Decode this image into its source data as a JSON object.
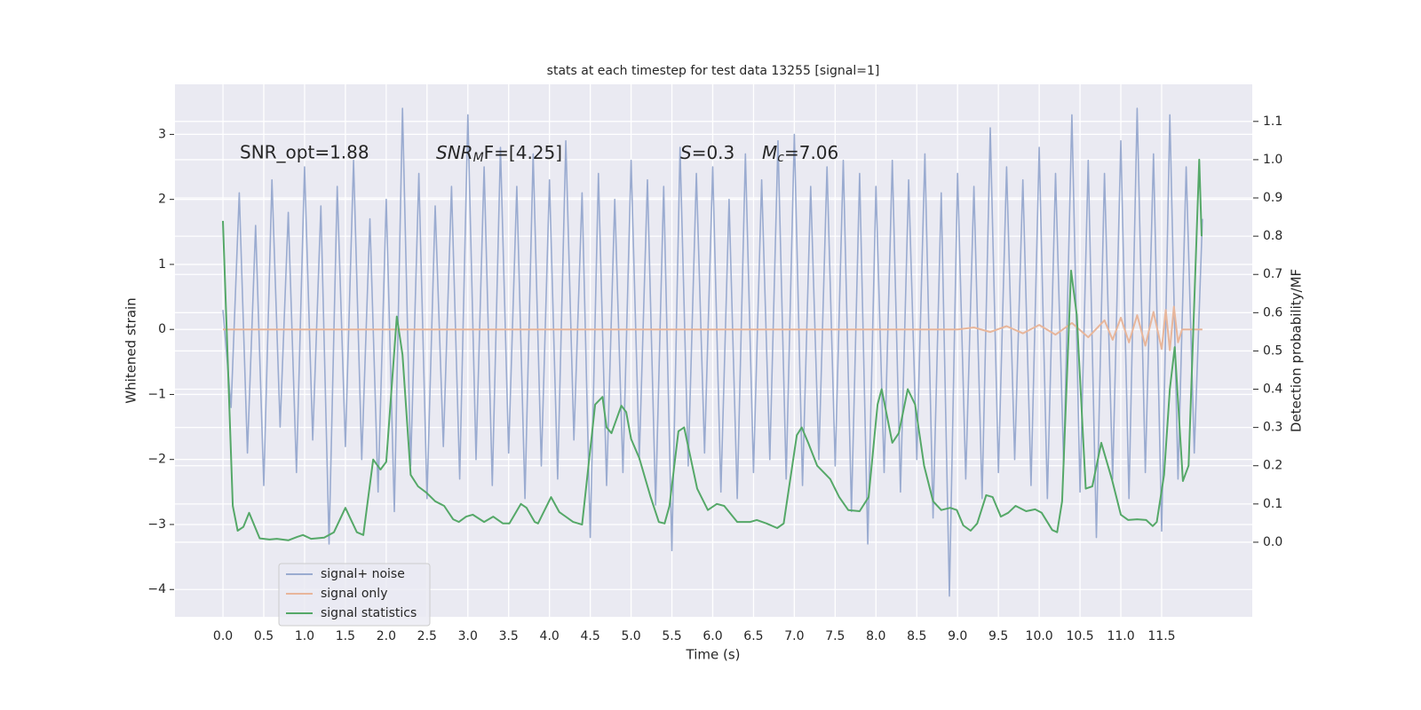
{
  "chart_data": {
    "type": "line",
    "title": "stats at each timestep for test data 13255 [signal=1]",
    "xlabel": "Time (s)",
    "ylabel": "Whitened strain",
    "y2label": "Detection probability/MF",
    "annotations": [
      "SNR_opt=1.88",
      {
        "base": "SNR",
        "sub": "M",
        "rest": "F=[4.25]"
      },
      {
        "base": "S",
        "rest": "=0.3"
      },
      {
        "base": "M",
        "sub": "c",
        "rest": "=7.06"
      }
    ],
    "xlim": [
      -0.588,
      12.61
    ],
    "ylim": [
      -4.42,
      3.77
    ],
    "y2lim": [
      -0.195,
      1.197
    ],
    "xticks": [
      {
        "value": 0,
        "label": "0.0"
      },
      0.5,
      {
        "value": 1,
        "label": "1.0"
      },
      1.5,
      {
        "value": 2,
        "label": "2.0"
      },
      2.5,
      {
        "value": 3,
        "label": "3.0"
      },
      3.5,
      {
        "value": 4,
        "label": "4.0"
      },
      4.5,
      {
        "value": 5,
        "label": "5.0"
      },
      5.5,
      {
        "value": 6,
        "label": "6.0"
      },
      6.5,
      {
        "value": 7,
        "label": "7.0"
      },
      7.5,
      {
        "value": 8,
        "label": "8.0"
      },
      8.5,
      {
        "value": 9,
        "label": "9.0"
      },
      9.5,
      {
        "value": 10,
        "label": "10.0"
      },
      10.5,
      {
        "value": 11,
        "label": "11.0"
      },
      11.5
    ],
    "yticks": [
      {
        "value": -4,
        "label": "−4"
      },
      {
        "value": -3,
        "label": "−3"
      },
      {
        "value": -2,
        "label": "−2"
      },
      {
        "value": -1,
        "label": "−1"
      },
      0,
      1,
      2,
      3
    ],
    "y2ticks": [
      {
        "value": 0,
        "label": "0.0"
      },
      0.1,
      0.2,
      0.3,
      0.4,
      0.5,
      0.6,
      0.7,
      0.8,
      0.9,
      {
        "value": 1,
        "label": "1.0"
      },
      1.1
    ],
    "grid": true,
    "legend": "lower left",
    "series": [
      {
        "name": "signal+ noise",
        "color": "#9aabd0",
        "x": [
          0,
          0.1,
          0.2,
          0.3,
          0.4,
          0.5,
          0.6,
          0.7,
          0.8,
          0.9,
          1,
          1.1,
          1.2,
          1.3,
          1.4,
          1.5,
          1.6,
          1.7,
          1.8,
          1.9,
          2,
          2.1,
          2.2,
          2.3,
          2.4,
          2.5,
          2.6,
          2.7,
          2.8,
          2.9,
          3,
          3.1,
          3.2,
          3.3,
          3.4,
          3.5,
          3.6,
          3.7,
          3.8,
          3.9,
          4,
          4.1,
          4.2,
          4.3,
          4.4,
          4.5,
          4.6,
          4.7,
          4.8,
          4.9,
          5,
          5.1,
          5.2,
          5.3,
          5.4,
          5.5,
          5.6,
          5.7,
          5.8,
          5.9,
          6,
          6.1,
          6.2,
          6.3,
          6.4,
          6.5,
          6.6,
          6.7,
          6.8,
          6.9,
          7,
          7.1,
          7.2,
          7.3,
          7.4,
          7.5,
          7.6,
          7.7,
          7.8,
          7.9,
          8,
          8.1,
          8.2,
          8.3,
          8.4,
          8.5,
          8.6,
          8.7,
          8.8,
          8.9,
          9,
          9.1,
          9.2,
          9.3,
          9.4,
          9.5,
          9.6,
          9.7,
          9.8,
          9.9,
          10,
          10.1,
          10.2,
          10.3,
          10.4,
          10.5,
          10.6,
          10.7,
          10.8,
          10.9,
          11,
          11.1,
          11.2,
          11.3,
          11.4,
          11.5,
          11.6,
          11.7,
          11.8,
          11.9,
          12
        ],
        "values": [
          0.3,
          -1.2,
          2.1,
          -1.9,
          1.6,
          -2.4,
          2.3,
          -1.5,
          1.8,
          -2.2,
          2.5,
          -1.7,
          1.9,
          -3.3,
          2.2,
          -1.8,
          2.6,
          -2.0,
          1.7,
          -2.5,
          2.0,
          -2.8,
          3.4,
          -2.1,
          2.4,
          -2.6,
          1.9,
          -1.8,
          2.2,
          -2.3,
          3.3,
          -2.0,
          2.5,
          -2.4,
          2.8,
          -1.9,
          2.2,
          -2.6,
          2.7,
          -2.1,
          2.3,
          -2.3,
          2.9,
          -1.7,
          2.1,
          -3.2,
          2.4,
          -2.4,
          2.0,
          -2.2,
          2.6,
          -2.0,
          2.3,
          -2.7,
          2.2,
          -3.4,
          2.8,
          -2.1,
          2.4,
          -1.9,
          2.5,
          -2.5,
          2.0,
          -2.6,
          2.7,
          -2.2,
          2.3,
          -2.0,
          2.9,
          -2.3,
          3.0,
          -2.4,
          2.2,
          -2.0,
          2.5,
          -2.1,
          2.6,
          -2.8,
          2.4,
          -3.3,
          2.2,
          -2.2,
          2.6,
          -2.5,
          2.3,
          -2.0,
          2.7,
          -2.9,
          2.1,
          -4.1,
          2.4,
          -2.3,
          2.2,
          -2.6,
          3.1,
          -2.2,
          2.5,
          -2.0,
          2.3,
          -2.4,
          2.8,
          -2.6,
          2.4,
          -2.1,
          3.3,
          -2.5,
          2.6,
          -3.2,
          2.4,
          -2.3,
          2.9,
          -2.6,
          3.4,
          -2.2,
          2.7,
          -3.1,
          3.3,
          -2.3,
          2.5,
          -1.9,
          1.7
        ]
      },
      {
        "name": "signal only",
        "color": "#e8b69b",
        "x": [
          0,
          9.0,
          9.2,
          9.4,
          9.6,
          9.8,
          10.0,
          10.2,
          10.4,
          10.6,
          10.8,
          10.9,
          11.0,
          11.1,
          11.2,
          11.3,
          11.4,
          11.5,
          11.55,
          11.6,
          11.65,
          11.7,
          11.75,
          12.0
        ],
        "values": [
          0,
          0,
          0.03,
          -0.04,
          0.05,
          -0.06,
          0.07,
          -0.08,
          0.1,
          -0.12,
          0.14,
          -0.16,
          0.18,
          -0.2,
          0.22,
          -0.25,
          0.27,
          -0.3,
          0.3,
          -0.32,
          0.35,
          -0.2,
          0,
          0
        ]
      },
      {
        "name": "signal statistics",
        "color": "#55a868",
        "axis": "y2",
        "x": [
          0,
          0.12,
          0.18,
          0.25,
          0.32,
          0.45,
          0.57,
          0.66,
          0.8,
          0.91,
          0.98,
          1.08,
          1.24,
          1.36,
          1.5,
          1.64,
          1.72,
          1.84,
          1.93,
          2.0,
          2.13,
          2.2,
          2.3,
          2.39,
          2.49,
          2.6,
          2.71,
          2.82,
          2.89,
          2.98,
          3.06,
          3.2,
          3.31,
          3.43,
          3.51,
          3.65,
          3.72,
          3.82,
          3.86,
          4.02,
          4.12,
          4.29,
          4.4,
          4.56,
          4.65,
          4.7,
          4.76,
          4.88,
          4.94,
          5.0,
          5.1,
          5.24,
          5.34,
          5.41,
          5.47,
          5.58,
          5.65,
          5.81,
          5.94,
          6.05,
          6.14,
          6.3,
          6.46,
          6.54,
          6.66,
          6.79,
          6.87,
          7.03,
          7.09,
          7.17,
          7.28,
          7.44,
          7.55,
          7.66,
          7.8,
          7.91,
          8.02,
          8.07,
          8.2,
          8.28,
          8.39,
          8.48,
          8.59,
          8.7,
          8.8,
          8.91,
          8.99,
          9.07,
          9.16,
          9.24,
          9.35,
          9.43,
          9.53,
          9.62,
          9.71,
          9.84,
          9.95,
          10.03,
          10.16,
          10.22,
          10.28,
          10.39,
          10.46,
          10.57,
          10.65,
          10.76,
          10.89,
          11.0,
          11.09,
          11.2,
          11.31,
          11.39,
          11.44,
          11.53,
          11.6,
          11.66,
          11.7,
          11.76,
          11.83,
          11.96,
          11.99
        ],
        "values": [
          0.84,
          0.095,
          0.03,
          0.04,
          0.077,
          0.01,
          0.007,
          0.009,
          0.005,
          0.014,
          0.019,
          0.009,
          0.012,
          0.026,
          0.09,
          0.026,
          0.019,
          0.216,
          0.19,
          0.21,
          0.59,
          0.49,
          0.176,
          0.146,
          0.13,
          0.107,
          0.095,
          0.06,
          0.053,
          0.067,
          0.072,
          0.053,
          0.067,
          0.049,
          0.049,
          0.1,
          0.09,
          0.053,
          0.049,
          0.118,
          0.079,
          0.053,
          0.046,
          0.36,
          0.38,
          0.3,
          0.285,
          0.357,
          0.34,
          0.27,
          0.22,
          0.118,
          0.053,
          0.049,
          0.095,
          0.29,
          0.3,
          0.14,
          0.084,
          0.1,
          0.095,
          0.053,
          0.053,
          0.058,
          0.049,
          0.037,
          0.049,
          0.28,
          0.3,
          0.26,
          0.2,
          0.165,
          0.118,
          0.084,
          0.081,
          0.118,
          0.36,
          0.4,
          0.26,
          0.285,
          0.4,
          0.36,
          0.2,
          0.107,
          0.084,
          0.09,
          0.084,
          0.044,
          0.03,
          0.049,
          0.123,
          0.118,
          0.067,
          0.077,
          0.095,
          0.081,
          0.086,
          0.077,
          0.032,
          0.026,
          0.107,
          0.71,
          0.594,
          0.14,
          0.146,
          0.26,
          0.165,
          0.072,
          0.058,
          0.06,
          0.058,
          0.042,
          0.053,
          0.176,
          0.4,
          0.51,
          0.37,
          0.16,
          0.2,
          1.0,
          0.8
        ]
      }
    ]
  }
}
